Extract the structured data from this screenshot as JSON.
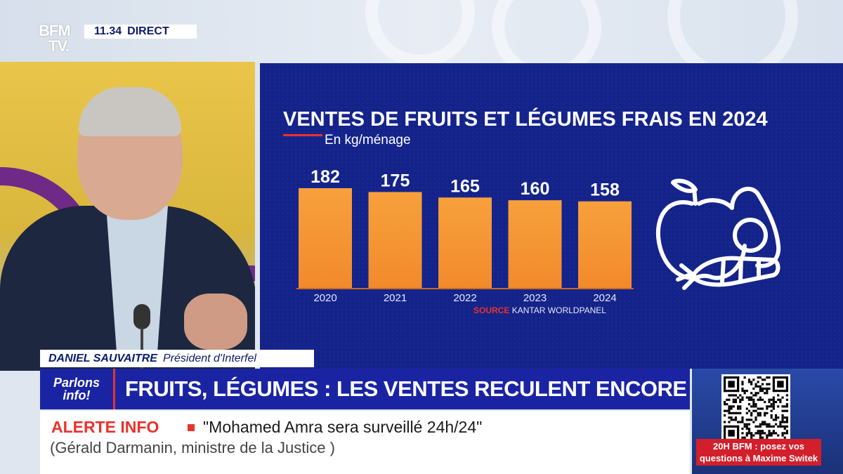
{
  "broadcast": {
    "logo_line1": "BFM",
    "logo_line2": "TV.",
    "time": "11.34",
    "live_label": "DIRECT"
  },
  "chart_data": {
    "type": "bar",
    "title": "VENTES DE FRUITS ET LÉGUMES FRAIS EN 2024",
    "subtitle": "En kg/ménage",
    "categories": [
      "2020",
      "2021",
      "2022",
      "2023",
      "2024"
    ],
    "values": [
      182,
      175,
      165,
      160,
      158
    ],
    "ylim": [
      0,
      182
    ],
    "source_label": "SOURCE",
    "source_text": "KANTAR WORLDPANEL",
    "colors": {
      "bar": "#f28a2c",
      "bar_top": "#f7a03c",
      "background": "#14238a"
    }
  },
  "lower_third": {
    "speaker_name": "DANIEL SAUVAITRE",
    "speaker_role": "Président d'Interfel",
    "tag_line1": "Parlons",
    "tag_line2": "info!",
    "headline": "FRUITS, LÉGUMES : LES VENTES RECULENT ENCORE"
  },
  "alert": {
    "label": "ALERTE INFO",
    "quote": "\"Mohamed Amra sera surveillé 24h/24\"",
    "source": "(Gérald Darmanin, ministre de la Justice )"
  },
  "promo": {
    "text": "20H BFM : posez vos questions à Maxime Switek"
  }
}
